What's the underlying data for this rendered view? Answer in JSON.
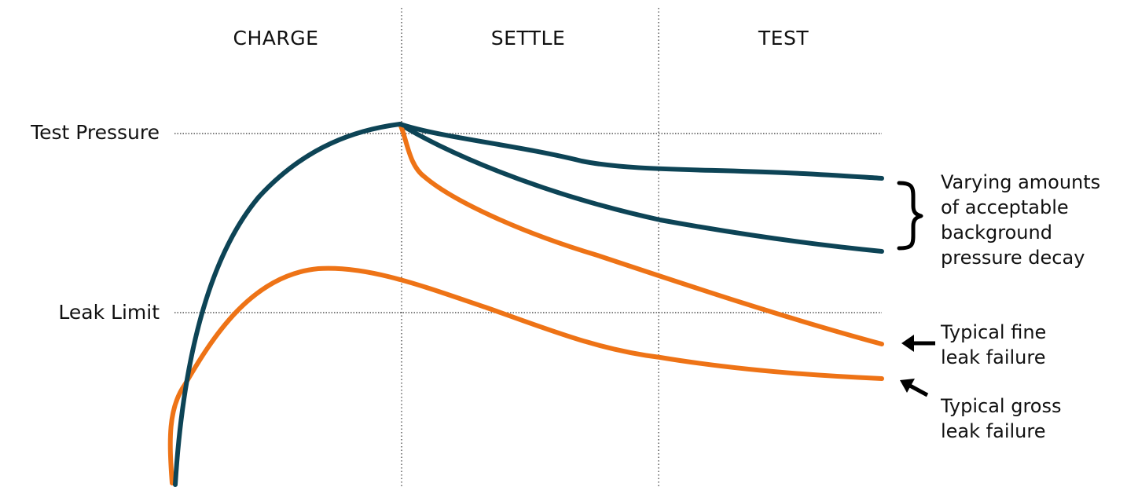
{
  "phases": [
    "CHARGE",
    "SETTLE",
    "TEST"
  ],
  "levels": {
    "test_pressure": "Test Pressure",
    "leak_limit": "Leak Limit"
  },
  "annotations": {
    "acceptable": [
      "Varying amounts",
      "of acceptable",
      "background",
      "pressure decay"
    ],
    "fine_leak": [
      "Typical fine",
      "leak failure"
    ],
    "gross_leak": [
      "Typical gross",
      "leak failure"
    ]
  },
  "colors": {
    "acceptable_curve": "#0d4456",
    "failure_curve": "#ee7316",
    "arrow": "#000000"
  },
  "curves": [
    {
      "name": "acceptable-low-decay",
      "color_key": "acceptable_curve"
    },
    {
      "name": "acceptable-higher-decay",
      "color_key": "acceptable_curve"
    },
    {
      "name": "fine-leak-failure",
      "color_key": "failure_curve"
    },
    {
      "name": "gross-leak-failure",
      "color_key": "failure_curve"
    }
  ]
}
